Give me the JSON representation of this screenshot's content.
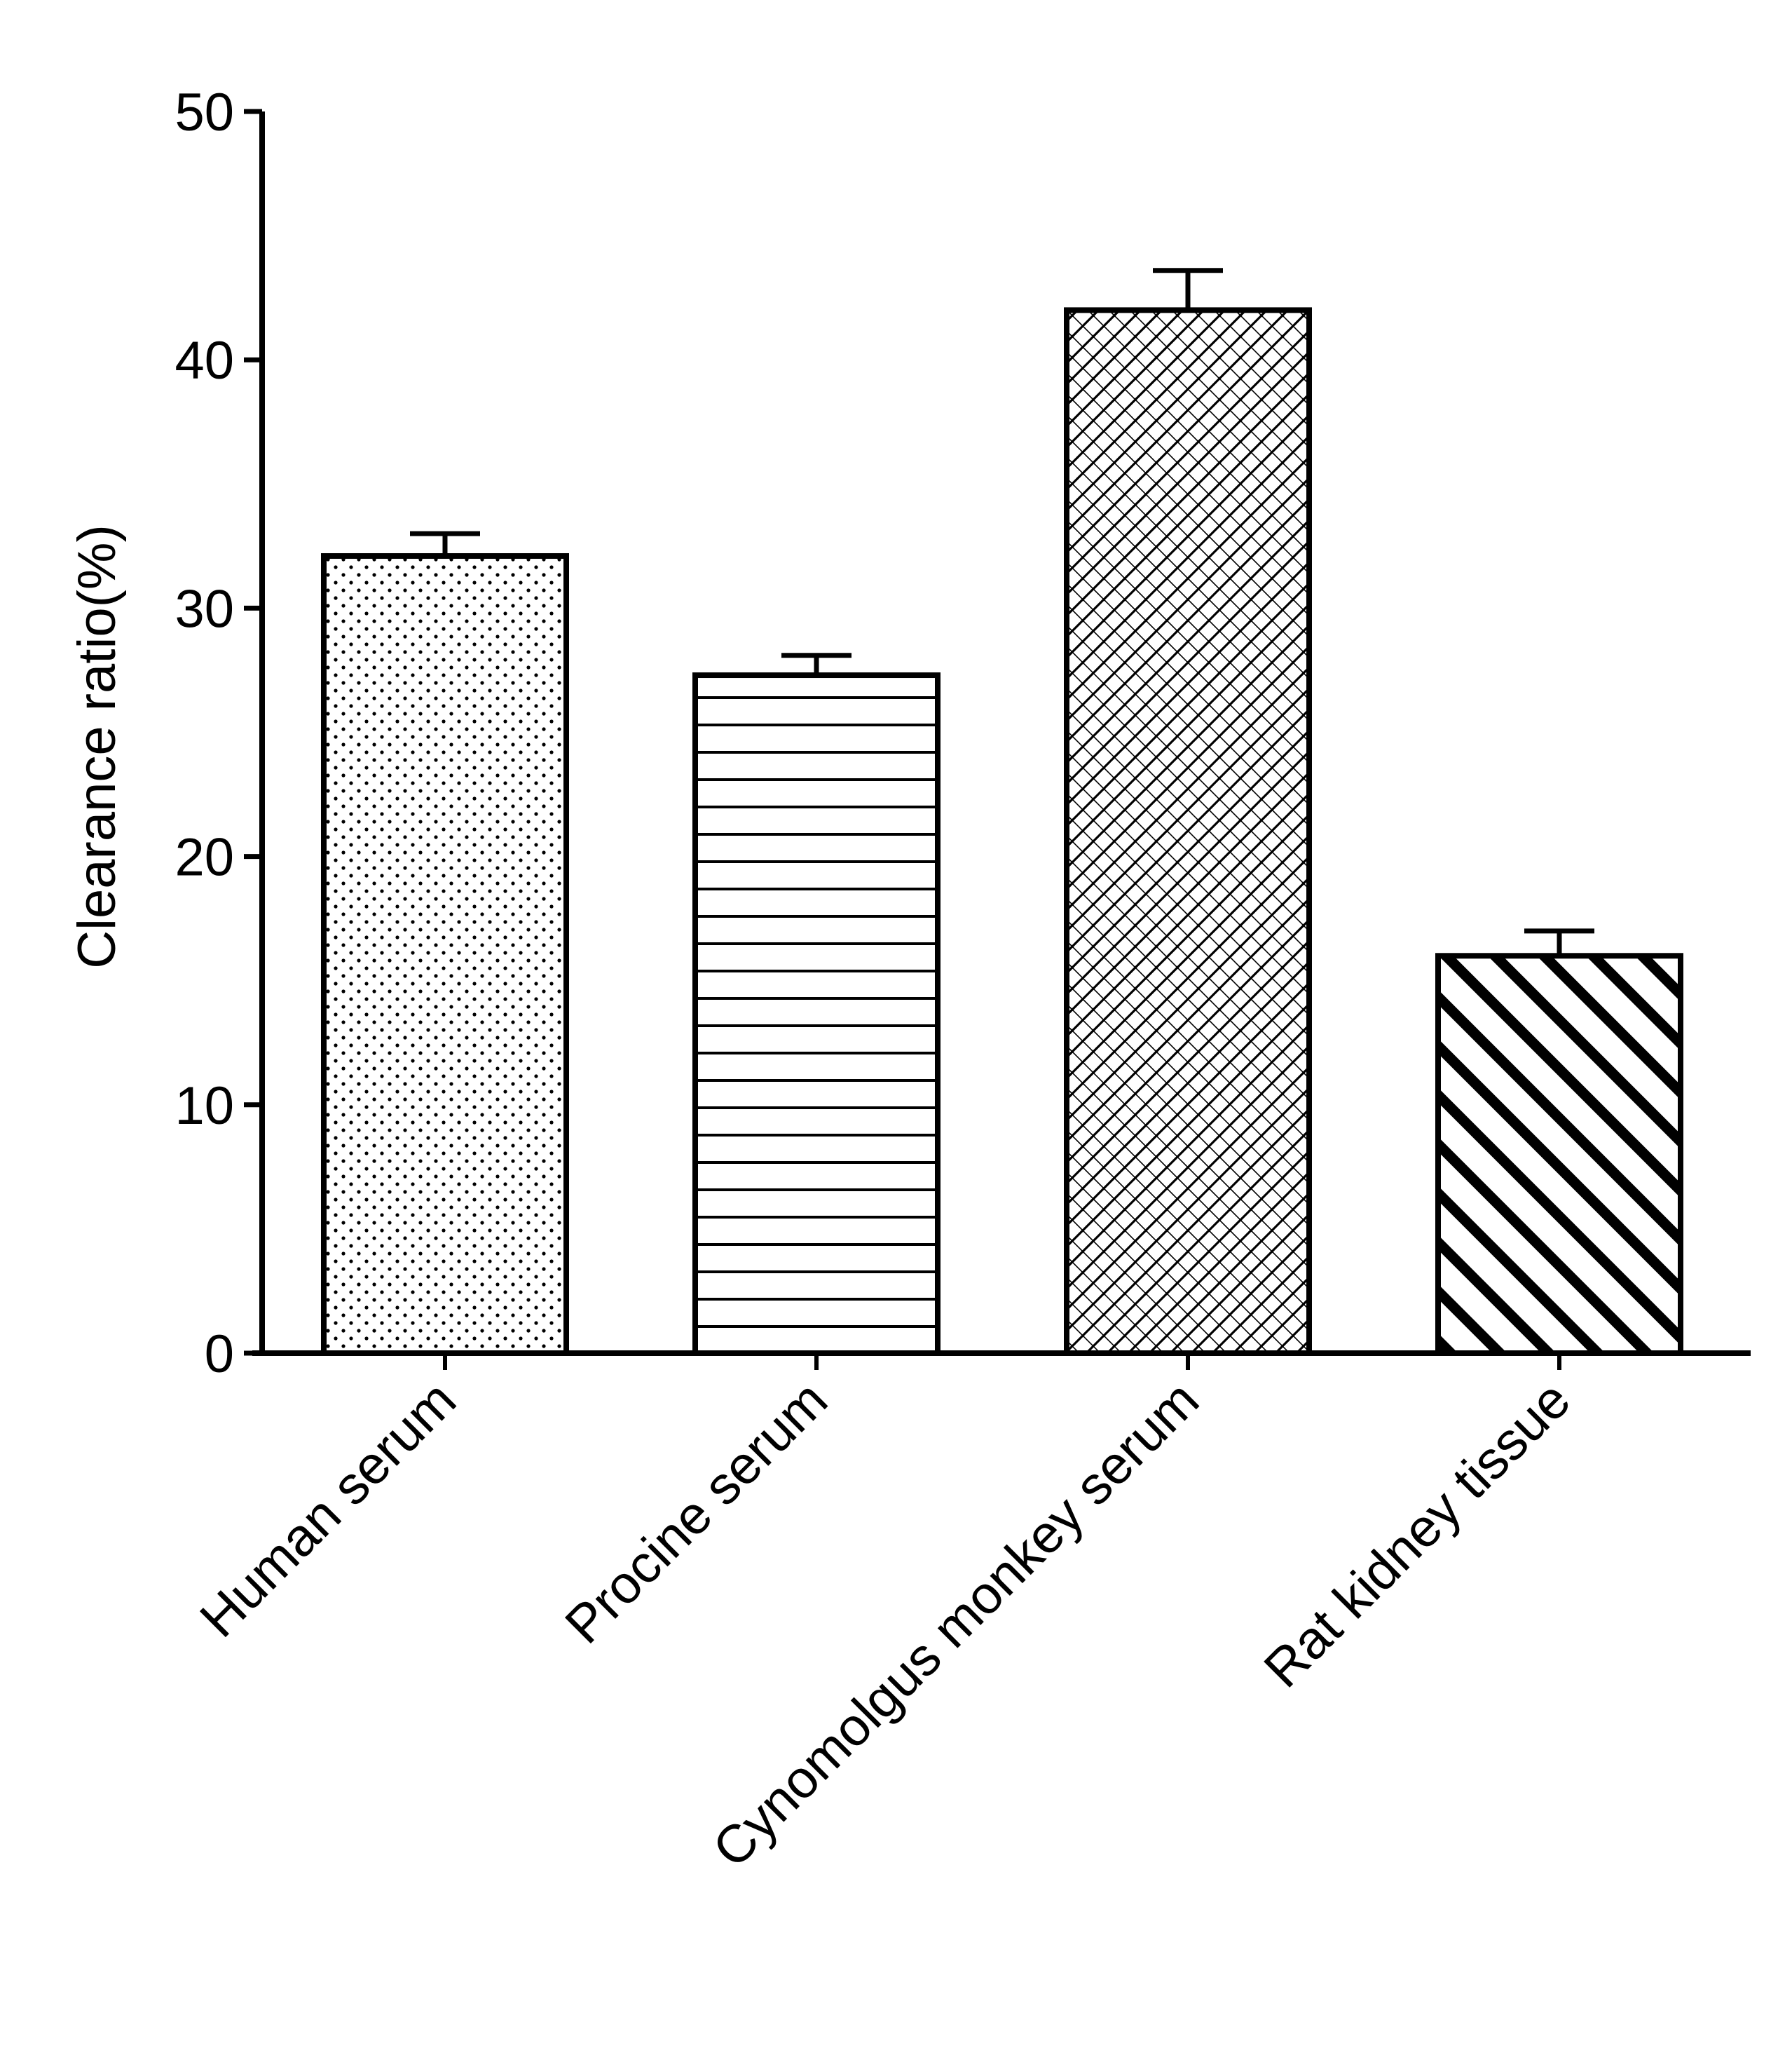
{
  "chart_data": {
    "type": "bar",
    "title": "",
    "xlabel": "",
    "ylabel": "Clearance ratio(%)",
    "ylim": [
      0,
      50
    ],
    "yticks": [
      0,
      10,
      20,
      30,
      40,
      50
    ],
    "grid": false,
    "categories": [
      "Human serum",
      "Procine serum",
      "Cynomolgus monkey serum",
      "Rat kidney tissue"
    ],
    "values": [
      32.1,
      27.3,
      42.0,
      16.0
    ],
    "errors": [
      0.9,
      0.8,
      1.6,
      1.0
    ],
    "patterns": [
      "dots",
      "horizontal-lines",
      "crosshatch",
      "diagonal-stripes"
    ],
    "colors": {
      "axis": "#000000",
      "bar_fill": "#ffffff",
      "pattern": "#000000"
    }
  }
}
